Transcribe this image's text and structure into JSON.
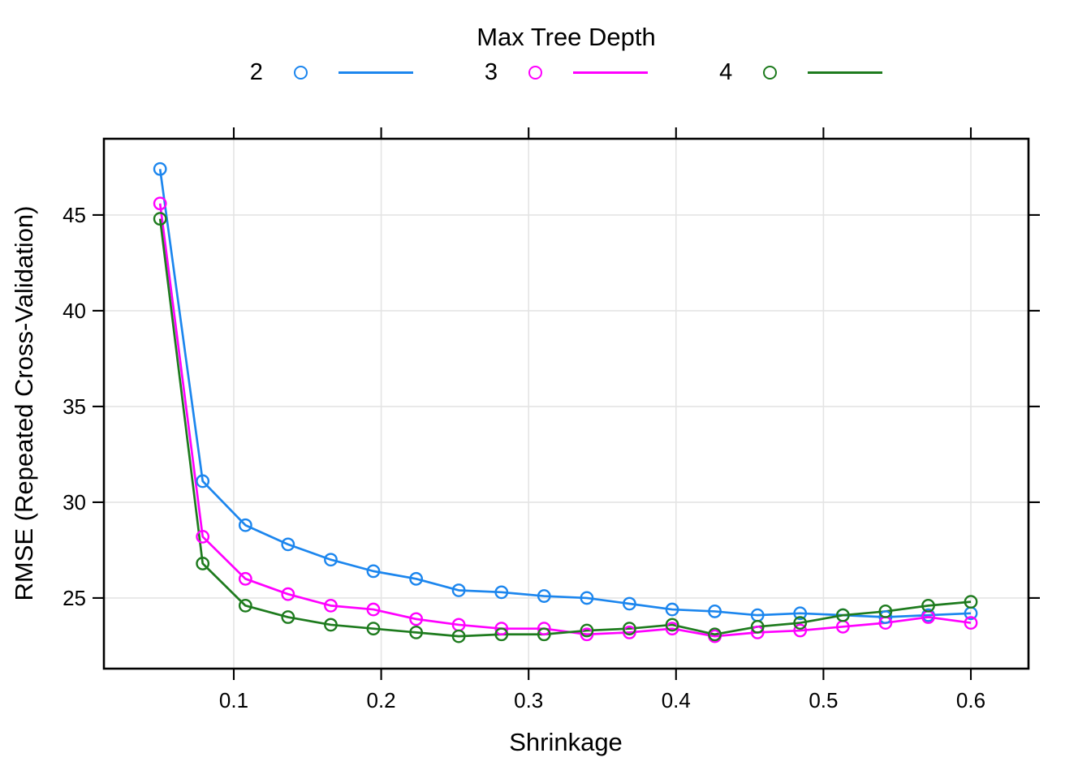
{
  "figure": {
    "background": "#FFFFFF"
  },
  "legend": {
    "title": "Max Tree Depth",
    "entries": [
      {
        "label": "2",
        "color": "#1C86EE"
      },
      {
        "label": "3",
        "color": "#FF00FF"
      },
      {
        "label": "4",
        "color": "#1E7B1E"
      }
    ]
  },
  "chart_data": {
    "type": "line",
    "title": "",
    "xlabel": "Shrinkage",
    "ylabel": "RMSE (Repeated Cross-Validation)",
    "legend_title": "Max Tree Depth",
    "legend_position": "top",
    "grid": true,
    "marker": "open-circle",
    "xlim": [
      0.0119,
      0.6391
    ],
    "ylim": [
      21.31,
      48.98
    ],
    "x_ticks": [
      0.1,
      0.2,
      0.3,
      0.4,
      0.5,
      0.6
    ],
    "y_ticks": [
      25,
      30,
      35,
      40,
      45
    ],
    "x": [
      0.05,
      0.0789,
      0.1079,
      0.1368,
      0.1658,
      0.1947,
      0.2237,
      0.2526,
      0.2816,
      0.3105,
      0.3395,
      0.3684,
      0.3974,
      0.4263,
      0.4553,
      0.4842,
      0.5132,
      0.5421,
      0.5711,
      0.6
    ],
    "series": [
      {
        "name": "2",
        "color": "#1C86EE",
        "values": [
          47.4,
          31.1,
          28.8,
          27.8,
          27.0,
          26.4,
          26.0,
          25.4,
          25.3,
          25.1,
          25.0,
          24.7,
          24.4,
          24.3,
          24.1,
          24.2,
          24.1,
          24.0,
          24.1,
          24.2
        ]
      },
      {
        "name": "3",
        "color": "#FF00FF",
        "values": [
          45.6,
          28.2,
          26.0,
          25.2,
          24.6,
          24.4,
          23.9,
          23.6,
          23.4,
          23.4,
          23.1,
          23.2,
          23.4,
          23.0,
          23.2,
          23.3,
          23.5,
          23.7,
          24.0,
          23.7
        ]
      },
      {
        "name": "4",
        "color": "#1E7B1E",
        "values": [
          44.8,
          26.8,
          24.6,
          24.0,
          23.6,
          23.4,
          23.2,
          23.0,
          23.1,
          23.1,
          23.3,
          23.4,
          23.6,
          23.1,
          23.5,
          23.7,
          24.1,
          24.3,
          24.6,
          24.8
        ]
      }
    ],
    "panel_style": {
      "grid_color": "#E4E4E4",
      "border_color": "#000000",
      "tick_color": "#000000"
    }
  }
}
